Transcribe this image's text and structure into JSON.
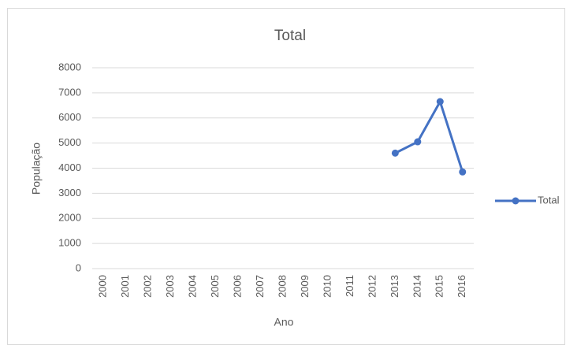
{
  "chart_data": {
    "type": "line",
    "title": "Total",
    "x_label": "Ano",
    "y_label": "População",
    "categories": [
      "2000",
      "2001",
      "2002",
      "2003",
      "2004",
      "2005",
      "2006",
      "2007",
      "2008",
      "2009",
      "2010",
      "2011",
      "2012",
      "2013",
      "2014",
      "2015",
      "2016"
    ],
    "series": [
      {
        "name": "Total",
        "color": "#4472c4",
        "values": [
          null,
          null,
          null,
          null,
          null,
          null,
          null,
          null,
          null,
          null,
          null,
          null,
          null,
          4600,
          5050,
          6650,
          3850
        ]
      }
    ],
    "ylim": [
      0,
      8000
    ],
    "yticks": [
      0,
      1000,
      2000,
      3000,
      4000,
      5000,
      6000,
      7000,
      8000
    ],
    "grid": true,
    "legend": "right"
  }
}
